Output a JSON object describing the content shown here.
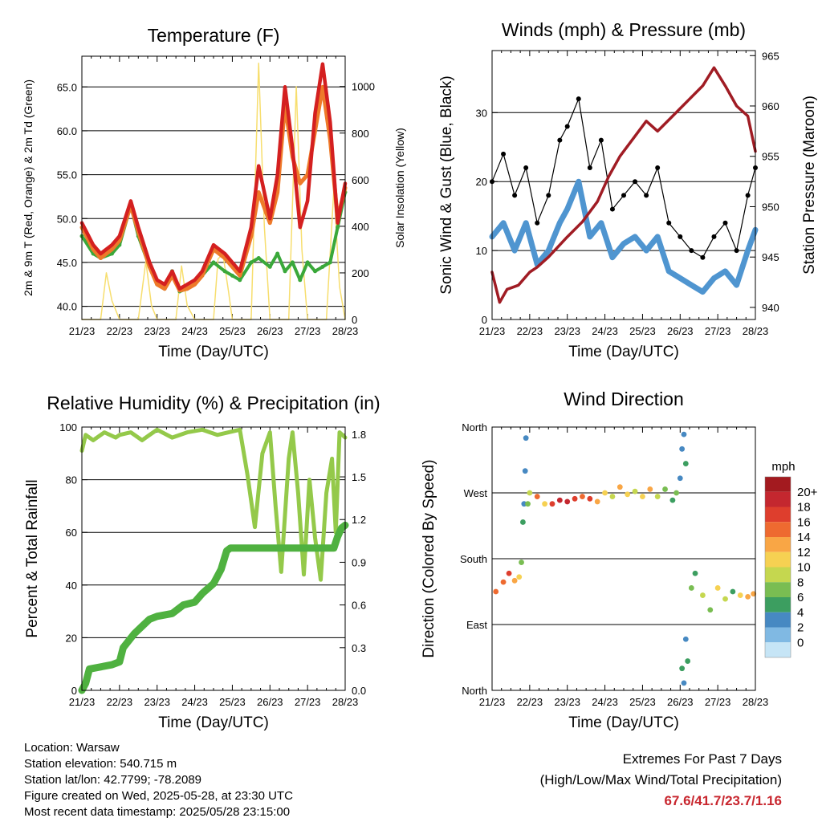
{
  "footer": {
    "location": "Location: Warsaw",
    "elevation": "Station elevation: 540.715 m",
    "latlon": "Station lat/lon: 42.7799; -78.2089",
    "created": "Figure created on Wed, 2025-05-28, at 23:30 UTC",
    "recent": "Most recent data timestamp: 2025/05/28 23:15:00"
  },
  "extremes": {
    "line1": "Extremes For Past 7 Days",
    "line2": "(High/Low/Max Wind/Total Precipitation)",
    "value": "67.6/41.7/23.7/1.16"
  },
  "colors": {
    "temp_red": "#d42020",
    "temp_orange": "#ee7a2a",
    "dewpoint_green": "#3aa83a",
    "solar_yellow": "#f7de6e",
    "wind_blue": "#4f95d0",
    "gust_black": "#000000",
    "pressure_maroon": "#a01c24",
    "rh_lightgreen": "#94c94a",
    "precip_green": "#4fb140"
  },
  "chart_data": [
    {
      "type": "line",
      "title": "Temperature (F)",
      "xlabel": "Time (Day/UTC)",
      "ylabel": "2m & 9m T (Red, Orange) & 2m Td (Green)",
      "y2label": "Solar Insolation (Yellow)",
      "x_ticks": [
        "21/23",
        "22/23",
        "23/23",
        "24/23",
        "25/23",
        "26/23",
        "27/23",
        "28/23"
      ],
      "xlim": [
        0,
        7
      ],
      "ylim": [
        38.5,
        68.5
      ],
      "y_ticks": [
        "40.0",
        "45.0",
        "50.0",
        "55.0",
        "60.0",
        "65.0"
      ],
      "y2lim": [
        0,
        1130
      ],
      "y2_ticks": [
        "0",
        "200",
        "400",
        "600",
        "800",
        "1000"
      ],
      "grid": true,
      "series": [
        {
          "name": "2m T",
          "axis": "left",
          "x": [
            0,
            0.3,
            0.5,
            0.8,
            1.0,
            1.3,
            1.5,
            1.8,
            2.0,
            2.2,
            2.4,
            2.6,
            2.8,
            3.0,
            3.2,
            3.5,
            3.8,
            4.0,
            4.2,
            4.5,
            4.7,
            5.0,
            5.2,
            5.4,
            5.6,
            5.8,
            6.0,
            6.2,
            6.4,
            6.6,
            6.8,
            7.0
          ],
          "values": [
            49.5,
            47,
            46,
            47,
            48,
            52,
            49,
            45,
            43,
            42.5,
            44,
            42,
            42.5,
            43,
            44,
            47,
            46,
            45,
            44,
            49,
            56,
            50,
            55,
            65,
            58,
            49,
            52,
            62,
            67.6,
            61,
            49.5,
            54
          ]
        },
        {
          "name": "9m T",
          "axis": "left",
          "x": [
            0,
            0.3,
            0.5,
            0.8,
            1.0,
            1.3,
            1.5,
            1.8,
            2.0,
            2.2,
            2.4,
            2.6,
            2.8,
            3.0,
            3.2,
            3.5,
            3.8,
            4.0,
            4.2,
            4.5,
            4.7,
            5.0,
            5.2,
            5.4,
            5.6,
            5.8,
            6.0,
            6.2,
            6.4,
            6.6,
            6.8,
            7.0
          ],
          "values": [
            49,
            46.5,
            45.5,
            46.5,
            47.5,
            51.5,
            48.5,
            44.5,
            42.5,
            42,
            43.5,
            41.8,
            42,
            42.5,
            43.5,
            46.5,
            45.5,
            44.5,
            43.5,
            48,
            53,
            49.5,
            53,
            63,
            57,
            54,
            55,
            60,
            65,
            59,
            50,
            53.5
          ]
        },
        {
          "name": "2m Td",
          "axis": "left",
          "x": [
            0,
            0.3,
            0.5,
            0.8,
            1.0,
            1.3,
            1.5,
            1.8,
            2.0,
            2.2,
            2.4,
            2.6,
            2.8,
            3.0,
            3.2,
            3.5,
            3.8,
            4.0,
            4.2,
            4.5,
            4.7,
            5.0,
            5.2,
            5.4,
            5.6,
            5.8,
            6.0,
            6.2,
            6.4,
            6.6,
            6.8,
            7.0
          ],
          "values": [
            48,
            46,
            45.5,
            46,
            47,
            51.5,
            48,
            44.5,
            42.5,
            42,
            44,
            41.7,
            42,
            42.5,
            43.5,
            45,
            44,
            43.5,
            43,
            45,
            45.5,
            44.5,
            46,
            44,
            45,
            43,
            45,
            44,
            44.5,
            45,
            49,
            53
          ]
        },
        {
          "name": "Solar Insolation",
          "axis": "right",
          "x": [
            0,
            0.5,
            0.65,
            0.8,
            1.0,
            1.5,
            1.7,
            1.85,
            2.0,
            2.5,
            2.65,
            2.8,
            3.0,
            3.5,
            3.62,
            3.75,
            3.9,
            4.0,
            4.5,
            4.7,
            4.85,
            5.0,
            5.5,
            5.7,
            5.85,
            6.0,
            6.5,
            6.7,
            6.85,
            7.0
          ],
          "values": [
            0,
            0,
            200,
            80,
            0,
            0,
            250,
            60,
            0,
            0,
            230,
            60,
            0,
            0,
            260,
            280,
            120,
            0,
            0,
            1100,
            400,
            0,
            0,
            1000,
            300,
            0,
            0,
            560,
            140,
            0
          ]
        }
      ]
    },
    {
      "type": "line",
      "title": "Winds (mph) & Pressure (mb)",
      "xlabel": "Time (Day/UTC)",
      "ylabel": "Sonic Wind & Gust (Blue, Black)",
      "y2label": "Station Pressure (Maroon)",
      "x_ticks": [
        "21/23",
        "22/23",
        "23/23",
        "24/23",
        "25/23",
        "26/23",
        "27/23",
        "28/23"
      ],
      "xlim": [
        0,
        7
      ],
      "ylim": [
        0,
        39
      ],
      "y_ticks": [
        "0",
        "10",
        "20",
        "30"
      ],
      "y2lim": [
        938.8,
        965.5
      ],
      "y2_ticks": [
        "940",
        "945",
        "950",
        "955",
        "960",
        "965"
      ],
      "grid": true,
      "series": [
        {
          "name": "Sonic Wind",
          "axis": "left",
          "x": [
            0,
            0.3,
            0.6,
            0.9,
            1.2,
            1.5,
            1.8,
            2.0,
            2.3,
            2.6,
            2.9,
            3.2,
            3.5,
            3.8,
            4.1,
            4.4,
            4.7,
            5.0,
            5.3,
            5.6,
            5.9,
            6.2,
            6.5,
            6.8,
            7.0
          ],
          "values": [
            12,
            14,
            10,
            14,
            8,
            10,
            14,
            16,
            20,
            12,
            14,
            9,
            11,
            12,
            10,
            12,
            7,
            6,
            5,
            4,
            6,
            7,
            5,
            10,
            13
          ]
        },
        {
          "name": "Gust",
          "axis": "left",
          "x": [
            0,
            0.3,
            0.6,
            0.9,
            1.2,
            1.5,
            1.8,
            2.0,
            2.3,
            2.6,
            2.9,
            3.2,
            3.5,
            3.8,
            4.1,
            4.4,
            4.7,
            5.0,
            5.3,
            5.6,
            5.9,
            6.2,
            6.5,
            6.8,
            7.0
          ],
          "values": [
            20,
            24,
            18,
            22,
            14,
            18,
            26,
            28,
            32,
            22,
            26,
            16,
            18,
            20,
            18,
            22,
            14,
            12,
            10,
            9,
            12,
            14,
            10,
            18,
            22
          ]
        },
        {
          "name": "Station Pressure",
          "axis": "right",
          "x": [
            0,
            0.2,
            0.4,
            0.7,
            1.0,
            1.2,
            1.5,
            2.0,
            2.4,
            2.8,
            3.1,
            3.4,
            3.8,
            4.1,
            4.4,
            4.8,
            5.2,
            5.6,
            5.9,
            6.2,
            6.5,
            6.8,
            7.0
          ],
          "values": [
            943.5,
            940.5,
            941.8,
            942.2,
            943.5,
            944,
            945,
            947,
            948.5,
            950.5,
            953,
            955,
            957,
            958.5,
            957.5,
            959,
            960.5,
            962,
            963.8,
            962,
            960,
            959,
            955.5
          ]
        }
      ]
    },
    {
      "type": "line",
      "title": "Relative Humidity (%) & Precipitation (in)",
      "xlabel": "Time (Day/UTC)",
      "ylabel": "Percent & Total Rainfall",
      "x_ticks": [
        "21/23",
        "22/23",
        "23/23",
        "24/23",
        "25/23",
        "26/23",
        "27/23",
        "28/23"
      ],
      "xlim": [
        0,
        7
      ],
      "ylim": [
        0,
        100
      ],
      "y_ticks": [
        "0",
        "20",
        "40",
        "60",
        "80",
        "100"
      ],
      "y2lim": [
        0,
        1.85
      ],
      "y2_ticks": [
        "0.0",
        "0.3",
        "0.6",
        "0.9",
        "1.2",
        "1.5",
        "1.8"
      ],
      "grid": true,
      "series": [
        {
          "name": "Relative Humidity",
          "axis": "left",
          "x": [
            0,
            0.1,
            0.3,
            0.6,
            0.9,
            1.0,
            1.3,
            1.6,
            1.8,
            2.0,
            2.4,
            2.8,
            3.2,
            3.6,
            3.9,
            4.2,
            4.4,
            4.6,
            4.8,
            5.0,
            5.15,
            5.3,
            5.5,
            5.6,
            5.75,
            5.9,
            6.05,
            6.2,
            6.35,
            6.5,
            6.65,
            6.75,
            6.85,
            7.0
          ],
          "values": [
            91,
            97,
            95,
            98,
            96,
            97,
            98,
            95,
            97,
            99,
            96,
            98,
            99,
            97,
            98,
            99,
            82,
            62,
            90,
            98,
            70,
            45,
            88,
            98,
            75,
            44,
            80,
            58,
            42,
            75,
            88,
            60,
            98,
            96
          ]
        },
        {
          "name": "Total Rainfall",
          "axis": "right",
          "x": [
            0,
            0.1,
            0.2,
            0.8,
            1.0,
            1.1,
            1.4,
            1.6,
            1.8,
            2.0,
            2.4,
            2.7,
            3.0,
            3.2,
            3.5,
            3.7,
            3.85,
            3.95,
            4.4,
            5.0,
            6.0,
            6.7,
            6.8,
            6.9,
            7.0
          ],
          "values": [
            0,
            0.05,
            0.15,
            0.18,
            0.2,
            0.3,
            0.4,
            0.45,
            0.5,
            0.52,
            0.54,
            0.6,
            0.62,
            0.68,
            0.75,
            0.85,
            0.98,
            1.0,
            1.0,
            1.0,
            1.0,
            1.0,
            1.08,
            1.14,
            1.16
          ]
        }
      ]
    },
    {
      "type": "scatter",
      "title": "Wind Direction",
      "xlabel": "Time (Day/UTC)",
      "ylabel": "Direction (Colored By Speed)",
      "x_ticks": [
        "21/23",
        "22/23",
        "23/23",
        "24/23",
        "25/23",
        "26/23",
        "27/23",
        "28/23"
      ],
      "xlim": [
        0,
        7
      ],
      "ylim": [
        0,
        360
      ],
      "y_ticks": [
        "North",
        "East",
        "South",
        "West",
        "North"
      ],
      "grid": true,
      "legend": {
        "title": "mph",
        "labels": [
          "20+",
          "18",
          "16",
          "14",
          "12",
          "10",
          "8",
          "6",
          "4",
          "2",
          "0"
        ],
        "colors": [
          "#a31a1f",
          "#c4272f",
          "#de3e2d",
          "#ee6a30",
          "#f9a645",
          "#f6d152",
          "#c5d74f",
          "#79bd52",
          "#3c9e60",
          "#4789c2",
          "#80b9e3",
          "#c6e5f6"
        ],
        "placement": "right"
      },
      "points": [
        {
          "x": 0.1,
          "y": 135,
          "s": 14
        },
        {
          "x": 0.3,
          "y": 148,
          "s": 14
        },
        {
          "x": 0.45,
          "y": 160,
          "s": 16
        },
        {
          "x": 0.6,
          "y": 150,
          "s": 12
        },
        {
          "x": 0.72,
          "y": 155,
          "s": 10
        },
        {
          "x": 0.78,
          "y": 175,
          "s": 6
        },
        {
          "x": 0.82,
          "y": 230,
          "s": 4
        },
        {
          "x": 0.85,
          "y": 255,
          "s": 2
        },
        {
          "x": 0.88,
          "y": 300,
          "s": 2
        },
        {
          "x": 0.9,
          "y": 345,
          "s": 2
        },
        {
          "x": 0.95,
          "y": 255,
          "s": 6
        },
        {
          "x": 1.0,
          "y": 270,
          "s": 8
        },
        {
          "x": 1.2,
          "y": 265,
          "s": 14
        },
        {
          "x": 1.4,
          "y": 255,
          "s": 10
        },
        {
          "x": 1.6,
          "y": 255,
          "s": 16
        },
        {
          "x": 1.8,
          "y": 260,
          "s": 18
        },
        {
          "x": 2.0,
          "y": 258,
          "s": 18
        },
        {
          "x": 2.2,
          "y": 262,
          "s": 16
        },
        {
          "x": 2.4,
          "y": 265,
          "s": 14
        },
        {
          "x": 2.6,
          "y": 262,
          "s": 16
        },
        {
          "x": 2.8,
          "y": 258,
          "s": 12
        },
        {
          "x": 3.0,
          "y": 270,
          "s": 10
        },
        {
          "x": 3.2,
          "y": 265,
          "s": 8
        },
        {
          "x": 3.4,
          "y": 278,
          "s": 12
        },
        {
          "x": 3.6,
          "y": 268,
          "s": 10
        },
        {
          "x": 3.8,
          "y": 272,
          "s": 8
        },
        {
          "x": 4.0,
          "y": 265,
          "s": 10
        },
        {
          "x": 4.2,
          "y": 275,
          "s": 12
        },
        {
          "x": 4.4,
          "y": 265,
          "s": 8
        },
        {
          "x": 4.6,
          "y": 275,
          "s": 6
        },
        {
          "x": 4.8,
          "y": 260,
          "s": 4
        },
        {
          "x": 4.9,
          "y": 270,
          "s": 6
        },
        {
          "x": 5.0,
          "y": 290,
          "s": 2
        },
        {
          "x": 5.05,
          "y": 330,
          "s": 2
        },
        {
          "x": 5.1,
          "y": 350,
          "s": 2
        },
        {
          "x": 5.15,
          "y": 310,
          "s": 4
        },
        {
          "x": 5.05,
          "y": 30,
          "s": 4
        },
        {
          "x": 5.1,
          "y": 10,
          "s": 2
        },
        {
          "x": 5.15,
          "y": 70,
          "s": 2
        },
        {
          "x": 5.2,
          "y": 40,
          "s": 4
        },
        {
          "x": 5.3,
          "y": 140,
          "s": 6
        },
        {
          "x": 5.4,
          "y": 160,
          "s": 4
        },
        {
          "x": 5.6,
          "y": 130,
          "s": 8
        },
        {
          "x": 5.8,
          "y": 110,
          "s": 6
        },
        {
          "x": 6.0,
          "y": 140,
          "s": 10
        },
        {
          "x": 6.2,
          "y": 125,
          "s": 8
        },
        {
          "x": 6.4,
          "y": 135,
          "s": 4
        },
        {
          "x": 6.6,
          "y": 130,
          "s": 10
        },
        {
          "x": 6.8,
          "y": 128,
          "s": 12
        },
        {
          "x": 6.95,
          "y": 132,
          "s": 12
        }
      ]
    }
  ]
}
